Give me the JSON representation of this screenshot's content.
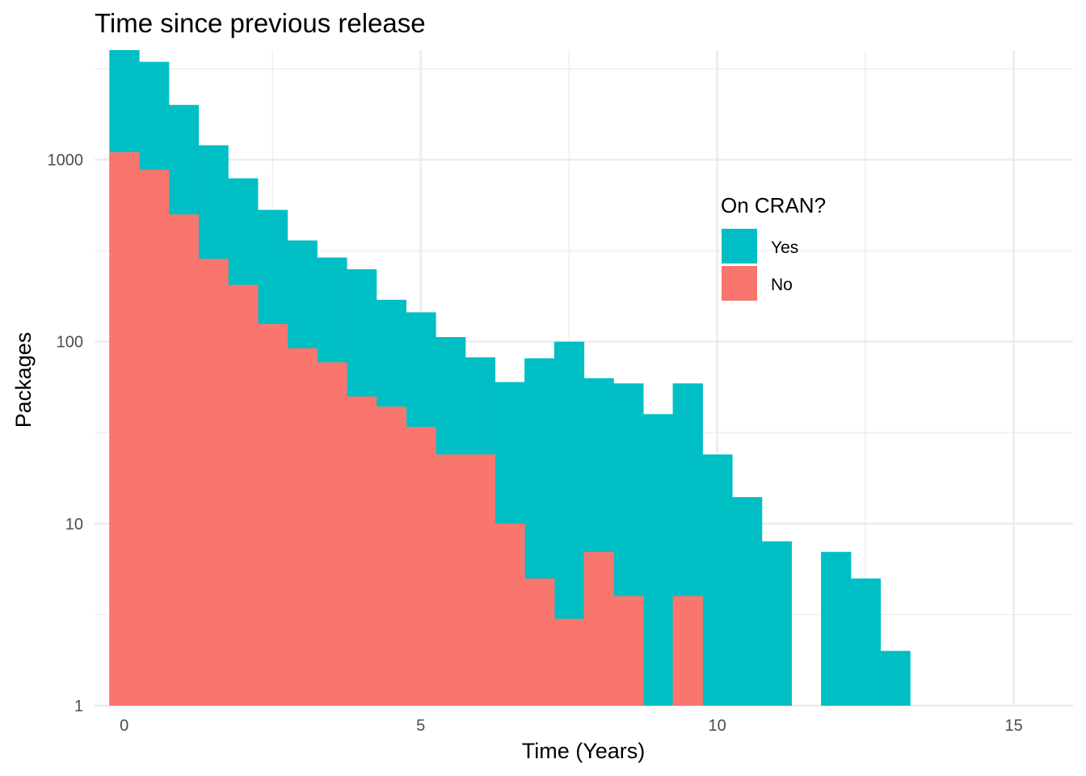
{
  "chart_data": {
    "type": "bar",
    "stacked": true,
    "title": "Time since previous release",
    "xlabel": "Time (Years)",
    "ylabel": "Packages",
    "y_scale": "log10",
    "xlim": [
      -0.5,
      16
    ],
    "ylim": [
      1,
      4000
    ],
    "x_ticks": [
      0,
      5,
      10,
      15
    ],
    "y_ticks": [
      1,
      10,
      100,
      1000
    ],
    "x_tick_labels": [
      "0",
      "5",
      "10",
      "15"
    ],
    "y_tick_labels": [
      "1",
      "10",
      "100",
      "1000"
    ],
    "bin_width": 0.5,
    "bin_starts": [
      -0.25,
      0.25,
      0.75,
      1.25,
      1.75,
      2.25,
      2.75,
      3.25,
      3.75,
      4.25,
      4.75,
      5.25,
      5.75,
      6.25,
      6.75,
      7.25,
      7.75,
      8.25,
      8.75,
      9.25,
      9.75,
      10.25,
      10.75,
      11.25,
      11.75,
      12.25,
      12.75
    ],
    "series": [
      {
        "name": "No",
        "color": "#F8766D",
        "values": [
          1100,
          880,
          500,
          285,
          205,
          125,
          92,
          77,
          50,
          44,
          34,
          24,
          24,
          10,
          5,
          3,
          7,
          4,
          null,
          4,
          null,
          null,
          null,
          null,
          null,
          null,
          null
        ]
      },
      {
        "name": "Yes",
        "color": "#00BFC4",
        "values": [
          4000,
          3450,
          2000,
          1200,
          790,
          530,
          360,
          290,
          250,
          170,
          145,
          106,
          82,
          60,
          81,
          100,
          63,
          59,
          40,
          59,
          24,
          14,
          8,
          null,
          7,
          5,
          2
        ]
      }
    ],
    "grid": true,
    "legend": {
      "title": "On CRAN?",
      "position": "inside-right",
      "items": [
        {
          "label": "Yes",
          "color": "#00BFC4"
        },
        {
          "label": "No",
          "color": "#F8766D"
        }
      ]
    }
  }
}
